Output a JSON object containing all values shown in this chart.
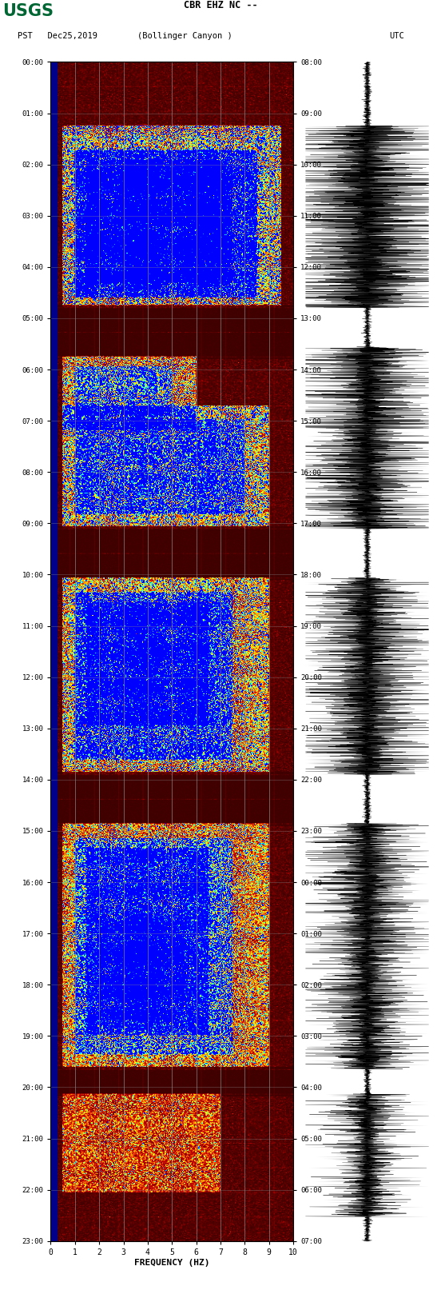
{
  "title_line1": "CBR EHZ NC --",
  "title_line2_left": "PST   Dec25,2019",
  "title_line2_center": "(Bollinger Canyon )",
  "title_line2_right": "UTC",
  "xlabel": "FREQUENCY (HZ)",
  "xticks": [
    0,
    1,
    2,
    3,
    4,
    5,
    6,
    7,
    8,
    9,
    10
  ],
  "freq_min": 0,
  "freq_max": 10,
  "time_labels_left": [
    "00:00",
    "01:00",
    "02:00",
    "03:00",
    "04:00",
    "05:00",
    "06:00",
    "07:00",
    "08:00",
    "09:00",
    "10:00",
    "11:00",
    "12:00",
    "13:00",
    "14:00",
    "15:00",
    "16:00",
    "17:00",
    "18:00",
    "19:00",
    "20:00",
    "21:00",
    "22:00",
    "23:00"
  ],
  "time_labels_right": [
    "08:00",
    "09:00",
    "10:00",
    "11:00",
    "12:00",
    "13:00",
    "14:00",
    "15:00",
    "16:00",
    "17:00",
    "18:00",
    "19:00",
    "20:00",
    "21:00",
    "22:00",
    "23:00",
    "00:00",
    "01:00",
    "02:00",
    "03:00",
    "04:00",
    "05:00",
    "06:00",
    "07:00"
  ],
  "fig_bg": "#ffffff",
  "usgs_color": "#006633",
  "wave_bg": "#ffffff",
  "spec_left_bar_color": "#00008B",
  "grid_color": "#808080"
}
